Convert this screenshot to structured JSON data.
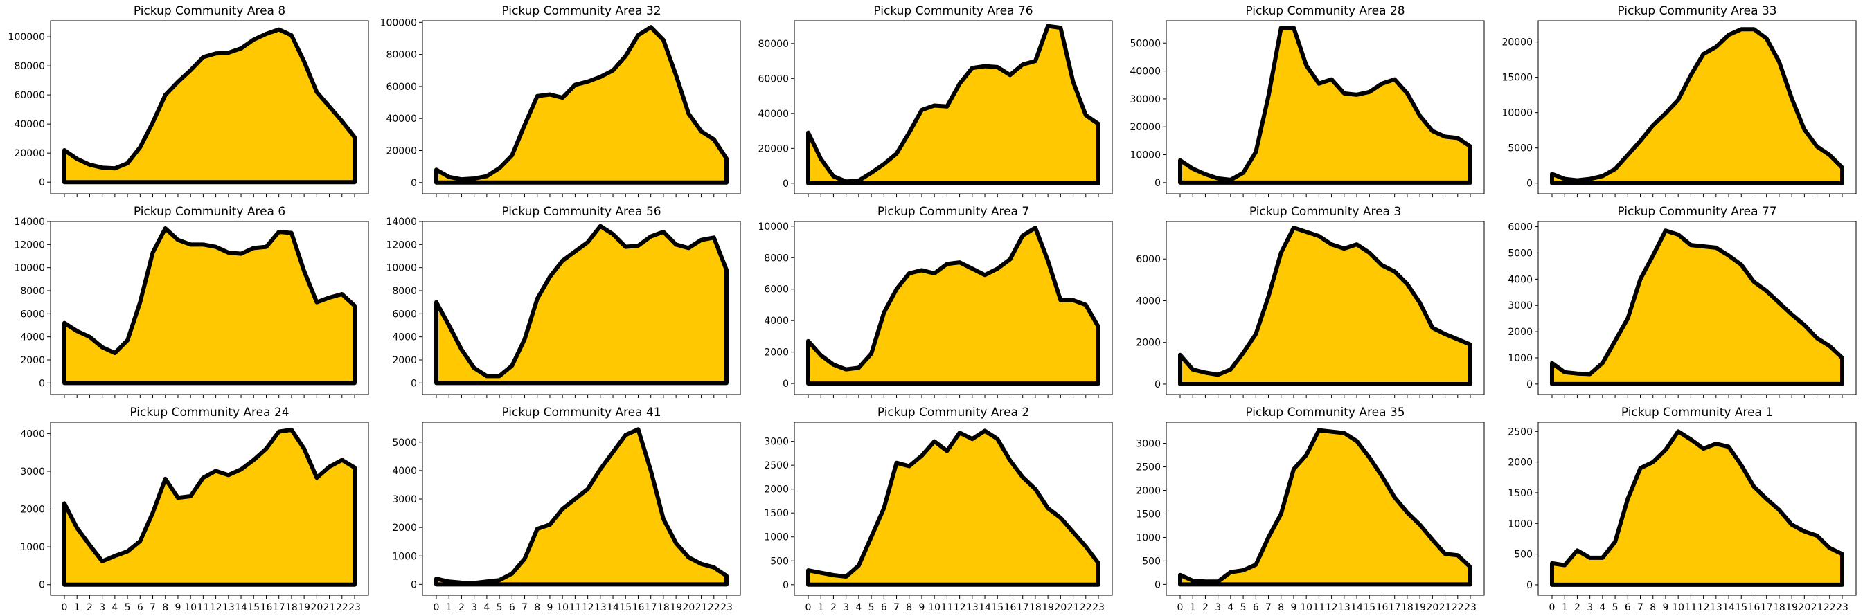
{
  "chart_data": {
    "type": "area",
    "fill_color": "#FFC800",
    "line_color": "#000000",
    "x_ticks": [
      "0",
      "1",
      "2",
      "3",
      "4",
      "5",
      "6",
      "7",
      "8",
      "9",
      "10",
      "11",
      "12",
      "13",
      "14",
      "15",
      "16",
      "17",
      "18",
      "19",
      "20",
      "21",
      "22",
      "23"
    ],
    "grid": false,
    "panels": [
      {
        "title": "Pickup Community Area 8",
        "ylim": [
          -8000,
          111000
        ],
        "yticks": [
          0,
          20000,
          40000,
          60000,
          80000,
          100000
        ],
        "values": [
          22000,
          16000,
          12000,
          10000,
          9500,
          13000,
          24000,
          41000,
          60000,
          69000,
          77000,
          86000,
          88500,
          89000,
          92000,
          98000,
          102000,
          105000,
          101000,
          83000,
          62000,
          52000,
          42000,
          31000
        ]
      },
      {
        "title": "Pickup Community Area 32",
        "ylim": [
          -7000,
          101000
        ],
        "yticks": [
          0,
          20000,
          40000,
          60000,
          80000,
          100000
        ],
        "values": [
          8000,
          3500,
          2000,
          2500,
          4000,
          9000,
          17000,
          36000,
          54000,
          55000,
          53000,
          61000,
          63000,
          66000,
          70000,
          79000,
          92000,
          97000,
          89000,
          67000,
          43000,
          32000,
          27000,
          15000
        ]
      },
      {
        "title": "Pickup Community Area 76",
        "ylim": [
          -6000,
          93000
        ],
        "yticks": [
          0,
          20000,
          40000,
          60000,
          80000
        ],
        "values": [
          29000,
          14000,
          4000,
          1000,
          1500,
          6000,
          11000,
          17000,
          29000,
          42000,
          44500,
          44000,
          57000,
          66000,
          67000,
          66500,
          62000,
          68000,
          70000,
          90000,
          89000,
          58000,
          39000,
          34000
        ]
      },
      {
        "title": "Pickup Community Area 28",
        "ylim": [
          -4000,
          58000
        ],
        "yticks": [
          0,
          10000,
          20000,
          30000,
          40000,
          50000
        ],
        "values": [
          8000,
          5000,
          3000,
          1500,
          1000,
          3500,
          11000,
          31000,
          55500,
          55500,
          42000,
          35500,
          37000,
          32000,
          31500,
          32500,
          35500,
          37000,
          32000,
          24000,
          18500,
          16500,
          16000,
          13000
        ]
      },
      {
        "title": "Pickup Community Area 33",
        "ylim": [
          -1500,
          23000
        ],
        "yticks": [
          0,
          5000,
          10000,
          15000,
          20000
        ],
        "values": [
          1300,
          600,
          400,
          600,
          1000,
          2000,
          4000,
          6000,
          8200,
          9900,
          11800,
          15300,
          18300,
          19300,
          21000,
          21800,
          21800,
          20500,
          17200,
          12000,
          7600,
          5200,
          4000,
          2200
        ]
      },
      {
        "title": "Pickup Community Area 6",
        "ylim": [
          -1000,
          14000
        ],
        "yticks": [
          0,
          2000,
          4000,
          6000,
          8000,
          10000,
          12000,
          14000
        ],
        "values": [
          5200,
          4500,
          4000,
          3100,
          2600,
          3700,
          7000,
          11300,
          13400,
          12400,
          12000,
          12000,
          11800,
          11300,
          11200,
          11700,
          11800,
          13100,
          13000,
          9700,
          7000,
          7400,
          7700,
          6700
        ]
      },
      {
        "title": "Pickup Community Area 56",
        "ylim": [
          -1000,
          14000
        ],
        "yticks": [
          0,
          2000,
          4000,
          6000,
          8000,
          10000,
          12000,
          14000
        ],
        "values": [
          7000,
          5000,
          2900,
          1300,
          600,
          600,
          1500,
          3800,
          7300,
          9200,
          10600,
          11400,
          12200,
          13600,
          12900,
          11800,
          11900,
          12700,
          13100,
          12000,
          11700,
          12400,
          12600,
          9800
        ]
      },
      {
        "title": "Pickup Community Area 7",
        "ylim": [
          -700,
          10300
        ],
        "yticks": [
          0,
          2000,
          4000,
          6000,
          8000,
          10000
        ],
        "values": [
          2700,
          1800,
          1200,
          900,
          1000,
          1900,
          4500,
          6000,
          7000,
          7200,
          7000,
          7600,
          7700,
          7300,
          6900,
          7300,
          7900,
          9400,
          9900,
          7800,
          5300,
          5300,
          5000,
          3600
        ]
      },
      {
        "title": "Pickup Community Area 3",
        "ylim": [
          -500,
          7800
        ],
        "yticks": [
          0,
          2000,
          4000,
          6000
        ],
        "values": [
          1400,
          700,
          550,
          450,
          700,
          1500,
          2400,
          4200,
          6300,
          7500,
          7300,
          7100,
          6700,
          6500,
          6700,
          6300,
          5700,
          5400,
          4800,
          3900,
          2700,
          2400,
          2150,
          1900
        ]
      },
      {
        "title": "Pickup Community Area 77",
        "ylim": [
          -400,
          6200
        ],
        "yticks": [
          0,
          1000,
          2000,
          3000,
          4000,
          5000,
          6000
        ],
        "values": [
          800,
          450,
          400,
          380,
          800,
          1650,
          2500,
          4000,
          4900,
          5850,
          5700,
          5300,
          5250,
          5200,
          4900,
          4550,
          3900,
          3550,
          3100,
          2650,
          2250,
          1750,
          1450,
          1000
        ]
      },
      {
        "title": "Pickup Community Area 24",
        "ylim": [
          -280,
          4300
        ],
        "yticks": [
          0,
          1000,
          2000,
          3000,
          4000
        ],
        "values": [
          2150,
          1500,
          1050,
          620,
          760,
          880,
          1150,
          1900,
          2800,
          2300,
          2340,
          2830,
          3010,
          2900,
          3050,
          3300,
          3600,
          4050,
          4100,
          3600,
          2830,
          3120,
          3300,
          3100
        ]
      },
      {
        "title": "Pickup Community Area 41",
        "ylim": [
          -380,
          5700
        ],
        "yticks": [
          0,
          1000,
          2000,
          3000,
          4000,
          5000
        ],
        "values": [
          200,
          100,
          60,
          50,
          100,
          150,
          380,
          900,
          1950,
          2100,
          2650,
          3000,
          3350,
          4050,
          4650,
          5250,
          5450,
          4000,
          2300,
          1450,
          950,
          720,
          600,
          300
        ]
      },
      {
        "title": "Pickup Community Area 2",
        "ylim": [
          -220,
          3400
        ],
        "yticks": [
          0,
          500,
          1000,
          1500,
          2000,
          2500,
          3000
        ],
        "values": [
          300,
          250,
          200,
          170,
          400,
          1000,
          1600,
          2550,
          2480,
          2700,
          3000,
          2800,
          3180,
          3050,
          3220,
          3050,
          2600,
          2250,
          2000,
          1600,
          1400,
          1100,
          800,
          450
        ]
      },
      {
        "title": "Pickup Community Area 35",
        "ylim": [
          -230,
          3450
        ],
        "yticks": [
          0,
          500,
          1000,
          1500,
          2000,
          2500,
          3000
        ],
        "values": [
          200,
          80,
          60,
          60,
          260,
          300,
          420,
          1000,
          1500,
          2450,
          2750,
          3280,
          3250,
          3220,
          3050,
          2700,
          2300,
          1850,
          1530,
          1270,
          950,
          650,
          620,
          370
        ]
      },
      {
        "title": "Pickup Community Area 1",
        "ylim": [
          -170,
          2650
        ],
        "yticks": [
          0,
          500,
          1000,
          1500,
          2000,
          2500
        ],
        "values": [
          350,
          320,
          560,
          440,
          440,
          700,
          1400,
          1900,
          2000,
          2200,
          2500,
          2370,
          2220,
          2300,
          2250,
          1950,
          1600,
          1400,
          1220,
          980,
          870,
          800,
          600,
          500
        ]
      }
    ]
  }
}
